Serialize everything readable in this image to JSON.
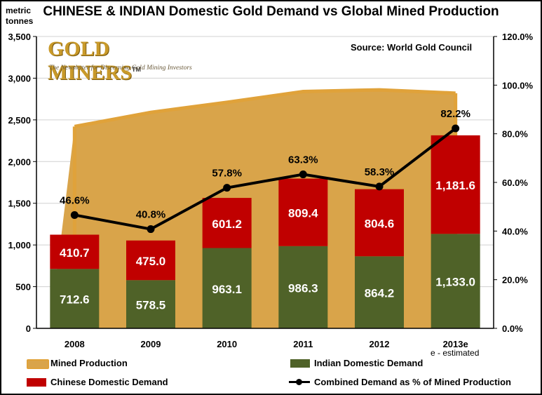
{
  "title": "CHINESE & INDIAN Domestic Gold Demand vs Global Mined Production",
  "y_unit_line1": "metric",
  "y_unit_line2": "tonnes",
  "source": "Source:  World Gold Council",
  "note": "e - estimated",
  "logo": {
    "word": "GOLD MINERS",
    "tm": "TM",
    "tagline": "The Newsletter for Discerning Gold Mining Investors"
  },
  "colors": {
    "mined": "#d9a44a",
    "mined_edge": "#e0a23a",
    "indian": "#4f6228",
    "chinese": "#c00000",
    "line": "#000000",
    "plot_bg": "#ffffff"
  },
  "chart_data": {
    "type": "bar",
    "title": "CHINESE & INDIAN Domestic Gold Demand vs Global Mined Production",
    "categories": [
      "2008",
      "2009",
      "2010",
      "2011",
      "2012",
      "2013e"
    ],
    "y_left": {
      "label": "metric tonnes",
      "range": [
        0,
        3500
      ],
      "ticks": [
        "0",
        "500",
        "1,000",
        "1,500",
        "2,000",
        "2,500",
        "3,000",
        "3,500"
      ]
    },
    "y_right": {
      "range": [
        0,
        120
      ],
      "ticks": [
        "0.0%",
        "20.0%",
        "40.0%",
        "60.0%",
        "80.0%",
        "100.0%",
        "120.0%"
      ]
    },
    "series": [
      {
        "name": "Mined Production",
        "kind": "area",
        "axis": "left",
        "values": [
          2420,
          2590,
          2710,
          2840,
          2860,
          2820
        ]
      },
      {
        "name": "Indian Domestic Demand",
        "kind": "stacked-bar",
        "axis": "left",
        "values": [
          712.6,
          578.5,
          963.1,
          986.3,
          864.2,
          1133.0
        ],
        "labels": [
          "712.6",
          "578.5",
          "963.1",
          "986.3",
          "864.2",
          "1,133.0"
        ]
      },
      {
        "name": "Chinese Domestic Demand",
        "kind": "stacked-bar",
        "axis": "left",
        "values": [
          410.7,
          475.0,
          601.2,
          809.4,
          804.6,
          1181.6
        ],
        "labels": [
          "410.7",
          "475.0",
          "601.2",
          "809.4",
          "804.6",
          "1,181.6"
        ]
      },
      {
        "name": "Combined Demand as % of Mined Production",
        "kind": "line",
        "axis": "right",
        "values": [
          46.6,
          40.8,
          57.8,
          63.3,
          58.3,
          82.2
        ],
        "labels": [
          "46.6%",
          "40.8%",
          "57.8%",
          "63.3%",
          "58.3%",
          "82.2%"
        ]
      }
    ],
    "grid": true,
    "legend_position": "bottom"
  }
}
